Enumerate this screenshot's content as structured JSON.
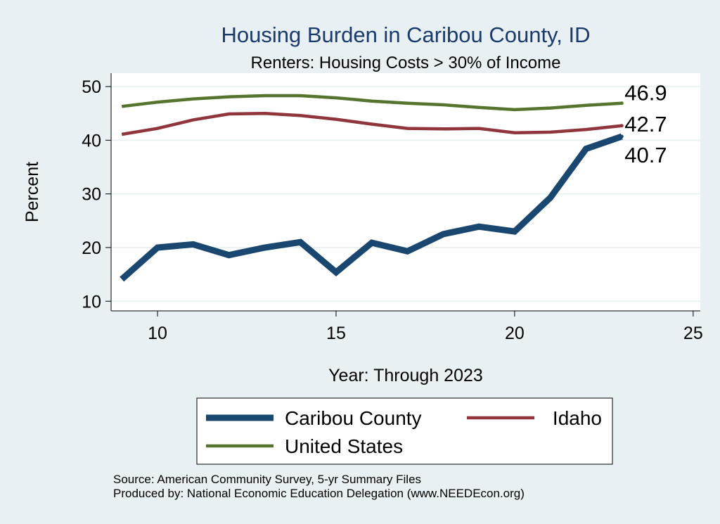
{
  "chart_data": {
    "type": "line",
    "title": "Housing Burden in Caribou County, ID",
    "subtitle": "Renters: Housing Costs > 30% of Income",
    "xlabel": "Year: Through 2023",
    "ylabel": "Percent",
    "xlim": [
      8.7,
      25.2
    ],
    "ylim": [
      8.2,
      52.5
    ],
    "xticks": [
      10,
      15,
      20,
      25
    ],
    "yticks": [
      10,
      20,
      30,
      40,
      50
    ],
    "grid": true,
    "series": [
      {
        "name": "Caribou County",
        "color": "#1a476f",
        "x": [
          9,
          10,
          11,
          12,
          13,
          14,
          15,
          16,
          17,
          18,
          19,
          20,
          21,
          22,
          23
        ],
        "values": [
          14.1,
          20.0,
          20.6,
          18.6,
          20.0,
          21.0,
          15.4,
          20.9,
          19.3,
          22.5,
          23.9,
          23.0,
          29.3,
          38.4,
          40.7
        ],
        "end_label": "40.7"
      },
      {
        "name": "Idaho",
        "color": "#90353b",
        "x": [
          9,
          10,
          11,
          12,
          13,
          14,
          15,
          16,
          17,
          18,
          19,
          20,
          21,
          22,
          23
        ],
        "values": [
          41.1,
          42.2,
          43.8,
          44.9,
          45.0,
          44.6,
          43.9,
          43.0,
          42.2,
          42.1,
          42.2,
          41.4,
          41.5,
          42.0,
          42.7
        ],
        "end_label": "42.7"
      },
      {
        "name": "United States",
        "color": "#55752f",
        "x": [
          9,
          10,
          11,
          12,
          13,
          14,
          15,
          16,
          17,
          18,
          19,
          20,
          21,
          22,
          23
        ],
        "values": [
          46.3,
          47.1,
          47.7,
          48.1,
          48.3,
          48.3,
          47.9,
          47.3,
          46.9,
          46.6,
          46.1,
          45.7,
          46.0,
          46.5,
          46.9
        ],
        "end_label": "46.9"
      }
    ],
    "legend": {
      "placement": "bottom",
      "items": [
        "Caribou County",
        "Idaho",
        "United States"
      ]
    },
    "source_lines": [
      "Source: American Community Survey, 5-yr Summary Files",
      "Produced by: National Economic Education Delegation (www.NEEDEcon.org)"
    ]
  }
}
